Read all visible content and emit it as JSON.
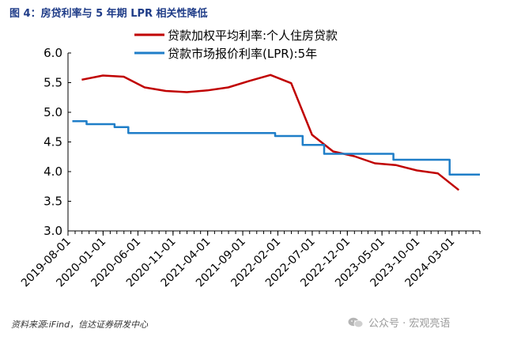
{
  "figure_title": "图 4：房贷利率与 5 年期 LPR 相关性降低",
  "source": "资料来源:iFind，信达证券研发中心",
  "watermark": "公众号 · 宏观亮语",
  "chart_data": {
    "type": "line",
    "title": "",
    "xlabel": "",
    "ylabel": "",
    "ylim": [
      3.0,
      6.0
    ],
    "yticks": [
      "6.0",
      "5.5",
      "5.0",
      "4.5",
      "4.0",
      "3.5",
      "3.0"
    ],
    "xlim": [
      "2019-08-01",
      "2024-07-01"
    ],
    "xticks": [
      "2019-08-01",
      "2020-01-01",
      "2020-06-01",
      "2020-11-01",
      "2021-04-01",
      "2021-09-01",
      "2022-02-01",
      "2022-07-01",
      "2022-12-01",
      "2023-05-01",
      "2023-10-01",
      "2024-03-01"
    ],
    "grid": false,
    "legend_position": "top",
    "series": [
      {
        "name": "贷款加权平均利率:个人住房贷款",
        "color": "#c00000",
        "step": false,
        "points": [
          [
            "2019-09-30",
            5.55
          ],
          [
            "2019-12-31",
            5.62
          ],
          [
            "2020-03-31",
            5.6
          ],
          [
            "2020-06-30",
            5.42
          ],
          [
            "2020-09-30",
            5.36
          ],
          [
            "2020-12-31",
            5.34
          ],
          [
            "2021-03-31",
            5.37
          ],
          [
            "2021-06-30",
            5.42
          ],
          [
            "2021-09-30",
            5.53
          ],
          [
            "2021-12-31",
            5.63
          ],
          [
            "2022-03-31",
            5.49
          ],
          [
            "2022-06-30",
            4.62
          ],
          [
            "2022-09-30",
            4.34
          ],
          [
            "2022-12-31",
            4.26
          ],
          [
            "2023-03-31",
            4.14
          ],
          [
            "2023-06-30",
            4.11
          ],
          [
            "2023-09-30",
            4.02
          ],
          [
            "2023-12-31",
            3.97
          ],
          [
            "2024-03-31",
            3.69
          ]
        ]
      },
      {
        "name": "贷款市场报价利率(LPR):5年",
        "color": "#1f7ec8",
        "step": true,
        "points": [
          [
            "2019-08-20",
            4.85
          ],
          [
            "2019-10-21",
            4.8
          ],
          [
            "2020-02-20",
            4.75
          ],
          [
            "2020-04-20",
            4.65
          ],
          [
            "2021-12-20",
            4.65
          ],
          [
            "2022-01-20",
            4.6
          ],
          [
            "2022-05-20",
            4.45
          ],
          [
            "2022-08-22",
            4.3
          ],
          [
            "2023-06-20",
            4.2
          ],
          [
            "2024-02-20",
            3.95
          ],
          [
            "2024-07-01",
            3.95
          ]
        ]
      }
    ]
  }
}
